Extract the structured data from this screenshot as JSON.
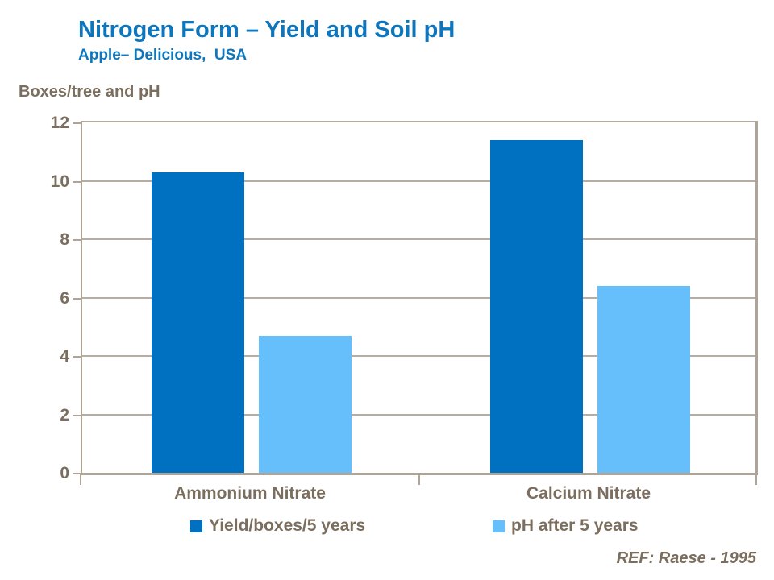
{
  "slide": {
    "title": "Nitrogen Form – Yield and Soil pH",
    "subtitle": "Apple– Delicious,  USA",
    "axis_title": "Boxes/tree and pH",
    "ref_note": "REF: Raese - 1995"
  },
  "colors": {
    "title_blue": "#0E76BD",
    "chart_text_brown": "#7B6E5E",
    "axis_line": "#AEA498",
    "series_yield_blue": "#0070C0",
    "series_ph_light_blue": "#66BEFA"
  },
  "chart_data": {
    "type": "bar",
    "title": "Nitrogen Form – Yield and Soil pH",
    "subtitle": "Apple– Delicious, USA",
    "ylabel": "Boxes/tree and pH",
    "xlabel": "",
    "categories": [
      "Ammonium Nitrate",
      "Calcium Nitrate"
    ],
    "series": [
      {
        "name": "Yield/boxes/5 years",
        "color": "#0070C0",
        "values": [
          10.3,
          11.4
        ]
      },
      {
        "name": "pH after 5 years",
        "color": "#66BEFA",
        "values": [
          4.7,
          6.4
        ]
      }
    ],
    "ylim": [
      0,
      12
    ],
    "yticks": [
      0,
      2,
      4,
      6,
      8,
      10,
      12
    ],
    "grid": true,
    "legend_position": "bottom",
    "annotation": "REF: Raese - 1995"
  }
}
